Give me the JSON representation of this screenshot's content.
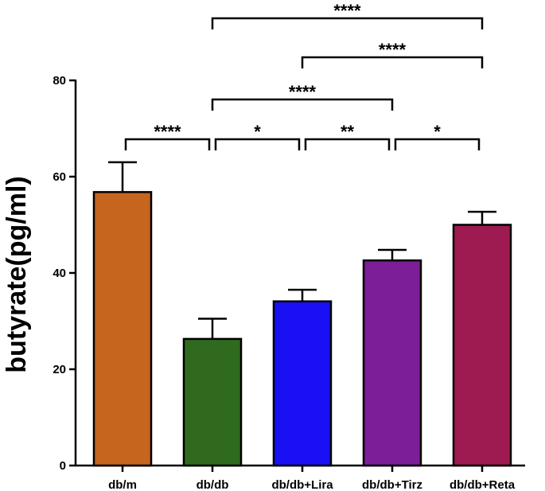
{
  "chart_data": {
    "type": "bar",
    "title": "",
    "xlabel": "",
    "ylabel": "butyrate(pg/ml)",
    "ylim": [
      0,
      80
    ],
    "yticks": [
      0,
      20,
      40,
      60,
      80
    ],
    "grid": false,
    "legend": "none",
    "categories": [
      "db/m",
      "db/db",
      "db/db+Lira",
      "db/db+Tirz",
      "db/db+Reta"
    ],
    "values": [
      56.8,
      26.3,
      34.1,
      42.6,
      50.0
    ],
    "error": [
      6.2,
      4.2,
      2.4,
      2.2,
      2.7
    ],
    "colors": [
      "#C5651E",
      "#2F6A1E",
      "#1A10F4",
      "#7B1E98",
      "#9E1B52"
    ],
    "significance": [
      {
        "from": 0,
        "to": 1,
        "label": "****",
        "level": 0
      },
      {
        "from": 1,
        "to": 2,
        "label": "*",
        "level": 0
      },
      {
        "from": 2,
        "to": 3,
        "label": "**",
        "level": 0
      },
      {
        "from": 3,
        "to": 4,
        "label": "*",
        "level": 0
      },
      {
        "from": 1,
        "to": 3,
        "label": "****",
        "level": 1
      },
      {
        "from": 2,
        "to": 4,
        "label": "****",
        "level": 2
      },
      {
        "from": 1,
        "to": 4,
        "label": "****",
        "level": 3
      }
    ]
  }
}
